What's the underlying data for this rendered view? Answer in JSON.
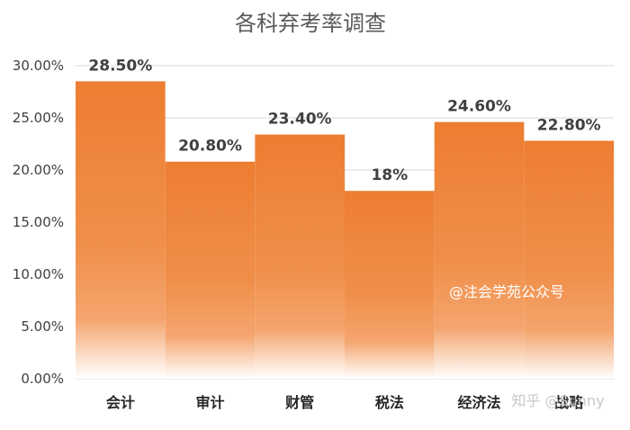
{
  "chart_data": {
    "type": "bar",
    "title": "各科弃考率调查",
    "xlabel": "",
    "ylabel": "",
    "categories": [
      "会计",
      "审计",
      "财管",
      "税法",
      "经济法",
      "战略"
    ],
    "values": [
      28.5,
      20.8,
      23.4,
      18,
      24.6,
      22.8
    ],
    "data_labels": [
      "28.50%",
      "20.80%",
      "23.40%",
      "18%",
      "24.60%",
      "22.80%"
    ],
    "ylim": [
      0,
      30
    ],
    "yticks": [
      0,
      5,
      10,
      15,
      20,
      25,
      30
    ],
    "ytick_labels": [
      "0.00%",
      "5.00%",
      "10.00%",
      "15.00%",
      "20.00%",
      "25.00%",
      "30.00%"
    ],
    "grid": true,
    "legend": "none",
    "colors": {
      "bar": "#ed7d31",
      "bar_light": "#f4a56e",
      "grid": "#d9d9d9"
    }
  },
  "watermarks": {
    "center": "@注会学苑公众号",
    "corner": "知乎 @Sunny"
  }
}
